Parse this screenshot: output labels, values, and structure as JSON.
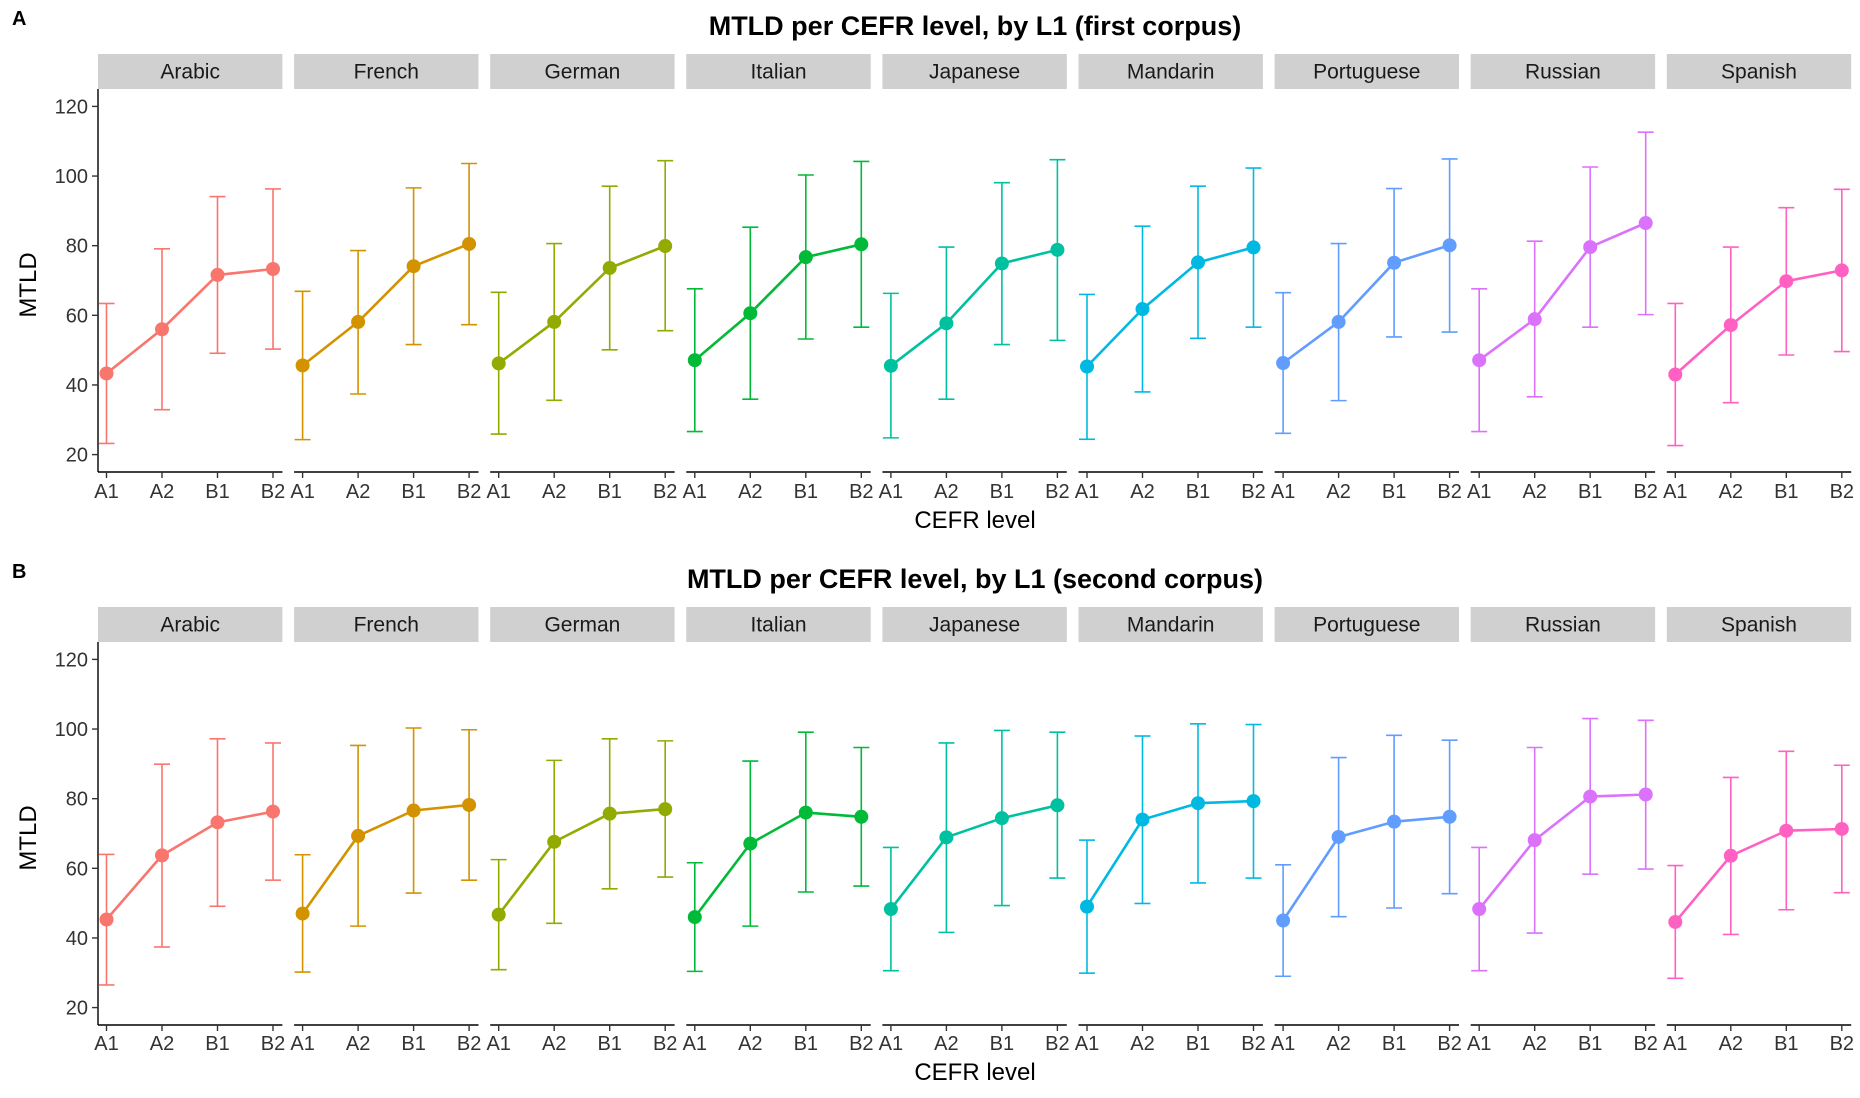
{
  "chart_data": [
    {
      "type": "line",
      "tag": "A",
      "title": "MTLD per CEFR level, by L1 (first corpus)",
      "xlabel": "CEFR level",
      "ylabel": "MTLD",
      "ylim": [
        15,
        125
      ],
      "y_ticks": [
        20,
        40,
        60,
        80,
        100,
        120
      ],
      "categories": [
        "A1",
        "A2",
        "B1",
        "B2"
      ],
      "grid": false,
      "error_bars": true,
      "series": [
        {
          "name": "Arabic",
          "color": "#F8766D",
          "values": [
            43.3,
            56.0,
            71.6,
            73.3
          ],
          "lower": [
            23.2,
            32.9,
            49.1,
            50.3
          ],
          "upper": [
            63.4,
            79.1,
            94.1,
            96.3
          ]
        },
        {
          "name": "French",
          "color": "#D39200",
          "values": [
            45.6,
            58.1,
            74.1,
            80.5
          ],
          "lower": [
            24.3,
            37.4,
            51.6,
            57.3
          ],
          "upper": [
            66.9,
            78.6,
            96.6,
            103.6
          ]
        },
        {
          "name": "German",
          "color": "#93AA00",
          "values": [
            46.2,
            58.1,
            73.6,
            79.9
          ],
          "lower": [
            25.9,
            35.6,
            50.1,
            55.6
          ],
          "upper": [
            66.6,
            80.6,
            97.1,
            104.4
          ]
        },
        {
          "name": "Italian",
          "color": "#00BA38",
          "values": [
            47.1,
            60.6,
            76.7,
            80.4
          ],
          "lower": [
            26.6,
            35.9,
            53.2,
            56.6
          ],
          "upper": [
            67.6,
            85.3,
            100.3,
            104.2
          ]
        },
        {
          "name": "Japanese",
          "color": "#00C19F",
          "values": [
            45.5,
            57.7,
            74.9,
            78.8
          ],
          "lower": [
            24.8,
            35.9,
            51.6,
            52.8
          ],
          "upper": [
            66.3,
            79.6,
            98.1,
            104.7
          ]
        },
        {
          "name": "Mandarin",
          "color": "#00B9E3",
          "values": [
            45.3,
            61.8,
            75.2,
            79.5
          ],
          "lower": [
            24.4,
            38.0,
            53.4,
            56.6
          ],
          "upper": [
            66.0,
            85.6,
            97.1,
            102.3
          ]
        },
        {
          "name": "Portuguese",
          "color": "#619CFF",
          "values": [
            46.3,
            58.1,
            75.1,
            80.1
          ],
          "lower": [
            26.1,
            35.5,
            53.8,
            55.2
          ],
          "upper": [
            66.5,
            80.6,
            96.4,
            104.9
          ]
        },
        {
          "name": "Russian",
          "color": "#DB72FB",
          "values": [
            47.1,
            58.9,
            79.6,
            86.5
          ],
          "lower": [
            26.6,
            36.6,
            56.6,
            60.2
          ],
          "upper": [
            67.6,
            81.3,
            102.6,
            112.6
          ]
        },
        {
          "name": "Spanish",
          "color": "#FF61C3",
          "values": [
            43.0,
            57.2,
            69.8,
            72.9
          ],
          "lower": [
            22.6,
            34.9,
            48.6,
            49.6
          ],
          "upper": [
            63.4,
            79.6,
            90.9,
            96.2
          ]
        }
      ]
    },
    {
      "type": "line",
      "tag": "B",
      "title": "MTLD per CEFR level, by L1 (second corpus)",
      "xlabel": "CEFR level",
      "ylabel": "MTLD",
      "ylim": [
        15,
        125
      ],
      "y_ticks": [
        20,
        40,
        60,
        80,
        100,
        120
      ],
      "categories": [
        "A1",
        "A2",
        "B1",
        "B2"
      ],
      "grid": false,
      "error_bars": true,
      "series": [
        {
          "name": "Arabic",
          "color": "#F8766D",
          "values": [
            45.3,
            63.7,
            73.2,
            76.3
          ],
          "lower": [
            26.5,
            37.4,
            49.1,
            56.6
          ],
          "upper": [
            64.0,
            89.9,
            97.2,
            96.0
          ]
        },
        {
          "name": "French",
          "color": "#D39200",
          "values": [
            47.0,
            69.3,
            76.6,
            78.2
          ],
          "lower": [
            30.2,
            43.4,
            52.9,
            56.6
          ],
          "upper": [
            63.9,
            95.3,
            100.3,
            99.8
          ]
        },
        {
          "name": "German",
          "color": "#93AA00",
          "values": [
            46.7,
            67.6,
            75.7,
            77.0
          ],
          "lower": [
            30.9,
            44.2,
            54.1,
            57.5
          ],
          "upper": [
            62.5,
            91.0,
            97.2,
            96.6
          ]
        },
        {
          "name": "Italian",
          "color": "#00BA38",
          "values": [
            46.0,
            67.1,
            76.0,
            74.8
          ],
          "lower": [
            30.4,
            43.4,
            53.2,
            54.9
          ],
          "upper": [
            61.6,
            90.8,
            99.1,
            94.7
          ]
        },
        {
          "name": "Japanese",
          "color": "#00C19F",
          "values": [
            48.3,
            68.9,
            74.4,
            78.1
          ],
          "lower": [
            30.6,
            41.6,
            49.3,
            57.2
          ],
          "upper": [
            66.0,
            96.0,
            99.6,
            99.1
          ]
        },
        {
          "name": "Mandarin",
          "color": "#00B9E3",
          "values": [
            49.0,
            74.0,
            78.7,
            79.3
          ],
          "lower": [
            29.9,
            49.9,
            55.8,
            57.2
          ],
          "upper": [
            68.1,
            98.0,
            101.5,
            101.3
          ]
        },
        {
          "name": "Portuguese",
          "color": "#619CFF",
          "values": [
            45.0,
            69.0,
            73.4,
            74.8
          ],
          "lower": [
            29.0,
            46.1,
            48.6,
            52.7
          ],
          "upper": [
            61.0,
            91.8,
            98.2,
            96.8
          ]
        },
        {
          "name": "Russian",
          "color": "#DB72FB",
          "values": [
            48.3,
            68.1,
            80.6,
            81.2
          ],
          "lower": [
            30.6,
            41.4,
            58.3,
            59.8
          ],
          "upper": [
            66.0,
            94.7,
            103.0,
            102.5
          ]
        },
        {
          "name": "Spanish",
          "color": "#FF61C3",
          "values": [
            44.6,
            63.6,
            70.8,
            71.3
          ],
          "lower": [
            28.4,
            41.0,
            48.1,
            53.0
          ],
          "upper": [
            60.8,
            86.1,
            93.6,
            89.6
          ]
        }
      ]
    }
  ]
}
